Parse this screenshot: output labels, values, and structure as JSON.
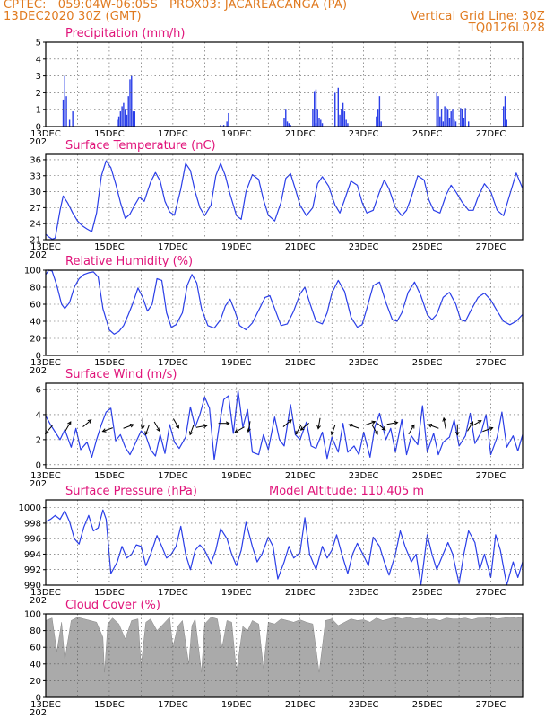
{
  "header": {
    "line1_left": "CPTEC:   059:04W-06:05S   PROX03: JACAREACANGA (PA)",
    "line2_left": "13DEC2020 30Z (GMT)",
    "line2_right": "Vertical Grid Line: 30Z",
    "line3_right": "TQ0126L028"
  },
  "x_labels": [
    "13DEC",
    "15DEC",
    "17DEC",
    "19DEC",
    "21DEC",
    "23DEC",
    "25DEC",
    "27DEC"
  ],
  "x_year_stub": "202",
  "colors": {
    "header": "#e07a1f",
    "title": "#e0147a",
    "line": "#2a3ee8",
    "bar": "#2a3ee8",
    "cloud": "#aaaaaa"
  },
  "chart_data": [
    {
      "id": "precip",
      "type": "bar",
      "title": "Precipitation (mm/h)",
      "x_unit": "days since 13DEC 00Z",
      "ylim": [
        0,
        5
      ],
      "yticks": [
        0,
        1,
        2,
        3,
        4,
        5
      ],
      "x": [
        0.55,
        0.6,
        0.65,
        0.75,
        0.85,
        2.25,
        2.3,
        2.35,
        2.4,
        2.45,
        2.5,
        2.55,
        2.6,
        2.65,
        2.7,
        2.75,
        2.8,
        5.5,
        5.6,
        5.7,
        5.75,
        7.5,
        7.55,
        7.6,
        7.65,
        7.7,
        8.4,
        8.45,
        8.5,
        8.5,
        8.55,
        8.6,
        8.65,
        8.7,
        9.1,
        9.2,
        9.25,
        9.3,
        9.35,
        9.4,
        9.45,
        9.5,
        10.4,
        10.45,
        10.5,
        10.55,
        12.3,
        12.35,
        12.4,
        12.45,
        12.5,
        12.55,
        12.6,
        12.65,
        12.7,
        12.75,
        12.8,
        12.85,
        12.9,
        13.05,
        13.1,
        13.15,
        13.2,
        13.3,
        14.4,
        14.45,
        14.5
      ],
      "values": [
        1.6,
        3.0,
        1.8,
        0.4,
        0.9,
        0.4,
        0.6,
        0.9,
        1.2,
        1.4,
        1.0,
        0.7,
        1.8,
        2.8,
        3.0,
        0.9,
        0.9,
        0.1,
        0.1,
        0.3,
        0.8,
        0.5,
        1.0,
        0.3,
        0.2,
        0.1,
        1.0,
        2.1,
        0.2,
        2.2,
        1.0,
        0.5,
        0.4,
        0.2,
        2.0,
        2.3,
        0.7,
        1.0,
        1.4,
        0.9,
        0.4,
        0.2,
        0.6,
        1.0,
        1.8,
        0.3,
        2.0,
        1.8,
        0.6,
        1.0,
        0.3,
        1.2,
        1.1,
        1.0,
        0.5,
        0.9,
        1.0,
        0.4,
        0.3,
        1.1,
        1.0,
        0.5,
        1.1,
        0.3,
        1.2,
        1.8,
        0.4
      ]
    },
    {
      "id": "temp",
      "type": "line",
      "title": "Surface Temperature (nC)",
      "x_unit": "days since 13DEC 00Z",
      "ylim": [
        21,
        37
      ],
      "yticks": [
        21,
        24,
        27,
        30,
        33,
        36
      ],
      "x": [
        0,
        0.1,
        0.2,
        0.3,
        0.45,
        0.55,
        0.7,
        0.85,
        1.0,
        1.15,
        1.3,
        1.45,
        1.6,
        1.75,
        1.9,
        2.05,
        2.2,
        2.35,
        2.5,
        2.65,
        2.8,
        2.95,
        3.1,
        3.3,
        3.45,
        3.6,
        3.75,
        3.9,
        4.05,
        4.25,
        4.4,
        4.55,
        4.7,
        4.85,
        5.0,
        5.2,
        5.35,
        5.5,
        5.65,
        5.8,
        6.0,
        6.15,
        6.3,
        6.5,
        6.7,
        6.85,
        7.0,
        7.2,
        7.4,
        7.55,
        7.7,
        7.85,
        8.0,
        8.2,
        8.4,
        8.55,
        8.7,
        8.9,
        9.1,
        9.25,
        9.4,
        9.6,
        9.8,
        9.95,
        10.1,
        10.3,
        10.5,
        10.65,
        10.8,
        11.0,
        11.2,
        11.35,
        11.5,
        11.7,
        11.9,
        12.05,
        12.2,
        12.4,
        12.6,
        12.75,
        12.9,
        13.1,
        13.3,
        13.45,
        13.6,
        13.8,
        14.0,
        14.2,
        14.4,
        14.6,
        14.8,
        15.0
      ],
      "values": [
        22.0,
        21.5,
        21.1,
        21.3,
        26.5,
        29.2,
        27.8,
        26.0,
        24.5,
        23.6,
        23.0,
        22.5,
        26.0,
        33.0,
        35.8,
        34.5,
        31.5,
        28.0,
        25.0,
        25.8,
        27.5,
        29.0,
        28.2,
        31.8,
        33.6,
        32.0,
        28.2,
        26.2,
        25.6,
        30.5,
        35.3,
        34.0,
        30.0,
        27.0,
        25.5,
        27.5,
        33.0,
        35.3,
        33.0,
        29.5,
        25.5,
        24.8,
        30.0,
        33.2,
        32.3,
        28.5,
        25.6,
        24.5,
        28.0,
        32.5,
        33.4,
        30.5,
        27.5,
        25.5,
        27.0,
        31.5,
        32.8,
        31.0,
        27.5,
        26.0,
        28.5,
        32.0,
        31.2,
        28.0,
        26.0,
        26.5,
        30.0,
        32.2,
        30.5,
        27.0,
        25.5,
        26.5,
        29.0,
        33.0,
        32.2,
        28.5,
        26.5,
        26.0,
        29.5,
        31.2,
        30.0,
        28.0,
        26.5,
        26.5,
        29.0,
        31.5,
        30.0,
        26.5,
        25.5,
        29.5,
        33.5,
        30.6
      ]
    },
    {
      "id": "rh",
      "type": "line",
      "title": "Relative Humidity (%)",
      "x_unit": "days since 13DEC 00Z",
      "ylim": [
        0,
        100
      ],
      "yticks": [
        0,
        20,
        40,
        60,
        80,
        100
      ],
      "x": [
        0,
        0.1,
        0.2,
        0.35,
        0.5,
        0.6,
        0.75,
        0.9,
        1.05,
        1.2,
        1.35,
        1.5,
        1.65,
        1.8,
        2.0,
        2.15,
        2.3,
        2.45,
        2.6,
        2.75,
        2.9,
        3.05,
        3.2,
        3.35,
        3.5,
        3.65,
        3.8,
        3.95,
        4.1,
        4.3,
        4.45,
        4.6,
        4.75,
        4.9,
        5.1,
        5.3,
        5.5,
        5.65,
        5.8,
        5.95,
        6.1,
        6.3,
        6.5,
        6.7,
        6.9,
        7.05,
        7.2,
        7.4,
        7.6,
        7.8,
        8.0,
        8.15,
        8.3,
        8.5,
        8.7,
        8.85,
        9.0,
        9.2,
        9.4,
        9.6,
        9.8,
        9.95,
        10.1,
        10.3,
        10.5,
        10.7,
        10.9,
        11.05,
        11.2,
        11.4,
        11.6,
        11.8,
        12.0,
        12.15,
        12.3,
        12.5,
        12.7,
        12.9,
        13.05,
        13.2,
        13.4,
        13.6,
        13.8,
        14.0,
        14.2,
        14.4,
        14.6,
        14.8,
        15.0
      ],
      "values": [
        95,
        100,
        99,
        82,
        60,
        55,
        62,
        80,
        90,
        95,
        97,
        98,
        92,
        55,
        30,
        25,
        28,
        35,
        48,
        62,
        79,
        68,
        52,
        60,
        90,
        88,
        50,
        33,
        36,
        50,
        82,
        95,
        85,
        55,
        35,
        32,
        42,
        58,
        66,
        52,
        35,
        30,
        38,
        53,
        68,
        70,
        55,
        35,
        37,
        52,
        72,
        80,
        62,
        40,
        37,
        50,
        73,
        88,
        75,
        45,
        33,
        36,
        55,
        82,
        86,
        62,
        42,
        40,
        50,
        74,
        86,
        70,
        48,
        42,
        48,
        68,
        74,
        60,
        42,
        40,
        55,
        68,
        73,
        65,
        52,
        40,
        36,
        40,
        48
      ]
    },
    {
      "id": "wind",
      "type": "line",
      "title": "Surface Wind (m/s)",
      "x_unit": "days since 13DEC 00Z",
      "ylim": [
        -0.3,
        6.5
      ],
      "yticks": [
        0,
        2,
        4,
        6
      ],
      "x": [
        0,
        0.15,
        0.3,
        0.45,
        0.6,
        0.8,
        0.95,
        1.1,
        1.3,
        1.45,
        1.6,
        1.75,
        1.9,
        2.05,
        2.2,
        2.35,
        2.5,
        2.65,
        2.8,
        3.0,
        3.15,
        3.3,
        3.45,
        3.6,
        3.75,
        3.9,
        4.05,
        4.2,
        4.4,
        4.55,
        4.7,
        4.85,
        5.0,
        5.15,
        5.3,
        5.45,
        5.6,
        5.75,
        5.9,
        6.05,
        6.2,
        6.35,
        6.5,
        6.7,
        6.85,
        7.0,
        7.2,
        7.35,
        7.5,
        7.7,
        7.85,
        8.0,
        8.2,
        8.35,
        8.5,
        8.7,
        8.85,
        9.0,
        9.2,
        9.35,
        9.5,
        9.7,
        9.85,
        10.0,
        10.2,
        10.35,
        10.5,
        10.7,
        10.85,
        11.0,
        11.2,
        11.35,
        11.5,
        11.7,
        11.85,
        12.0,
        12.2,
        12.35,
        12.5,
        12.7,
        12.85,
        13.0,
        13.2,
        13.35,
        13.5,
        13.7,
        13.85,
        14.0,
        14.2,
        14.35,
        14.5,
        14.7,
        14.85,
        15.0
      ],
      "values": [
        3.9,
        3.2,
        2.6,
        2.0,
        2.8,
        1.4,
        2.9,
        1.2,
        1.8,
        0.6,
        2.0,
        3.2,
        4.2,
        4.5,
        1.9,
        2.4,
        1.4,
        0.8,
        1.6,
        2.7,
        2.3,
        1.2,
        0.7,
        2.4,
        0.9,
        3.2,
        1.8,
        1.3,
        2.2,
        4.6,
        3.0,
        4.0,
        5.4,
        4.5,
        0.4,
        3.0,
        5.2,
        5.5,
        2.5,
        5.9,
        3.0,
        4.4,
        1.0,
        0.8,
        2.4,
        1.2,
        3.8,
        2.0,
        1.5,
        4.8,
        2.4,
        2.0,
        3.4,
        1.5,
        1.3,
        2.6,
        0.5,
        2.2,
        1.0,
        3.3,
        1.0,
        1.5,
        0.8,
        2.6,
        0.6,
        3.0,
        4.1,
        2.0,
        2.9,
        1.0,
        3.6,
        0.8,
        2.3,
        1.6,
        4.7,
        1.0,
        2.5,
        0.8,
        1.8,
        2.2,
        3.6,
        1.5,
        2.3,
        4.1,
        1.7,
        2.6,
        4.0,
        0.8,
        2.2,
        4.2,
        1.4,
        2.3,
        1.1,
        2.4
      ],
      "arrow_x": [
        0.1,
        0.7,
        1.3,
        1.95,
        2.6,
        3.05,
        3.2,
        3.5,
        4.1,
        4.6,
        4.9,
        5.6,
        6.1,
        6.4,
        7.6,
        7.95,
        8.15,
        8.6,
        9.05,
        9.7,
        10.2,
        10.35,
        10.55,
        10.9,
        11.5,
        12.2,
        12.55,
        12.95,
        13.35,
        13.55,
        13.9
      ],
      "arrow_dir_deg": [
        230,
        60,
        40,
        200,
        20,
        270,
        250,
        300,
        300,
        250,
        10,
        0,
        210,
        260,
        40,
        240,
        220,
        260,
        250,
        160,
        20,
        300,
        320,
        10,
        60,
        160,
        100,
        270,
        60,
        30,
        20
      ]
    },
    {
      "id": "press",
      "type": "line",
      "title": "Surface Pressure (hPa)",
      "x_unit": "days since 13DEC 00Z",
      "ylim": [
        990,
        1001
      ],
      "yticks": [
        990,
        992,
        994,
        996,
        998,
        1000
      ],
      "x": [
        0,
        0.15,
        0.3,
        0.45,
        0.6,
        0.75,
        0.9,
        1.05,
        1.2,
        1.35,
        1.5,
        1.65,
        1.8,
        1.9,
        2.05,
        2.25,
        2.4,
        2.55,
        2.7,
        2.85,
        3.0,
        3.15,
        3.3,
        3.5,
        3.65,
        3.8,
        3.95,
        4.1,
        4.25,
        4.4,
        4.55,
        4.7,
        4.85,
        5.0,
        5.2,
        5.35,
        5.5,
        5.7,
        5.85,
        6.0,
        6.15,
        6.3,
        6.5,
        6.65,
        6.8,
        7.0,
        7.15,
        7.3,
        7.5,
        7.65,
        7.8,
        8.0,
        8.15,
        8.3,
        8.5,
        8.7,
        8.85,
        9.0,
        9.15,
        9.3,
        9.5,
        9.65,
        9.8,
        10.0,
        10.15,
        10.3,
        10.5,
        10.65,
        10.8,
        11.0,
        11.15,
        11.3,
        11.5,
        11.65,
        11.8,
        12.0,
        12.15,
        12.3,
        12.5,
        12.65,
        12.8,
        13.0,
        13.15,
        13.3,
        13.5,
        13.65,
        13.8,
        14.0,
        14.15,
        14.3,
        14.5,
        14.7,
        14.85,
        15.0
      ],
      "values": [
        998.2,
        998.5,
        999.0,
        998.5,
        999.6,
        998.2,
        996.0,
        995.3,
        997.5,
        999.0,
        997.0,
        997.4,
        999.7,
        998.5,
        991.5,
        993.0,
        995.0,
        993.5,
        994.0,
        995.2,
        995.0,
        992.5,
        994.0,
        996.4,
        995.0,
        993.5,
        994.0,
        995.0,
        997.6,
        994.0,
        992.0,
        994.5,
        995.2,
        994.5,
        992.8,
        994.5,
        997.3,
        996.0,
        994.0,
        992.5,
        994.5,
        998.1,
        995.0,
        993.0,
        994.0,
        996.2,
        995.0,
        990.8,
        993.0,
        995.0,
        993.5,
        994.2,
        998.7,
        994.0,
        992.0,
        995.0,
        993.5,
        994.5,
        996.5,
        994.2,
        991.5,
        994.0,
        995.4,
        993.8,
        992.5,
        996.2,
        995.0,
        993.0,
        991.3,
        994.0,
        997.0,
        995.0,
        993.0,
        994.0,
        990.0,
        996.5,
        994.0,
        992.0,
        994.0,
        995.5,
        994.0,
        990.2,
        994.0,
        997.0,
        995.5,
        992.0,
        994.0,
        991.0,
        996.5,
        994.5,
        990.0,
        993.0,
        991.0,
        993.0
      ]
    },
    {
      "id": "cloud",
      "type": "area",
      "title": "Cloud Cover (%)",
      "x_unit": "days since 13DEC 00Z",
      "ylim": [
        0,
        100
      ],
      "yticks": [
        0,
        20,
        40,
        60,
        80,
        100
      ],
      "x": [
        0,
        0.2,
        0.35,
        0.5,
        0.6,
        0.8,
        1.0,
        1.2,
        1.4,
        1.6,
        1.8,
        1.85,
        1.95,
        2.1,
        2.3,
        2.5,
        2.7,
        2.9,
        3.0,
        3.15,
        3.3,
        3.5,
        3.7,
        3.9,
        4.0,
        4.15,
        4.3,
        4.5,
        4.6,
        4.7,
        4.9,
        5.0,
        5.2,
        5.4,
        5.55,
        5.7,
        5.85,
        6.0,
        6.2,
        6.35,
        6.5,
        6.7,
        6.85,
        7.0,
        7.2,
        7.4,
        7.6,
        7.8,
        8.0,
        8.2,
        8.4,
        8.6,
        8.8,
        9.0,
        9.2,
        9.4,
        9.6,
        9.8,
        10.0,
        10.2,
        10.4,
        10.6,
        10.8,
        11.0,
        11.2,
        11.4,
        11.6,
        11.8,
        12.0,
        12.2,
        12.4,
        12.6,
        12.8,
        13.0,
        13.2,
        13.4,
        13.6,
        13.8,
        14.0,
        14.2,
        14.4,
        14.6,
        14.8,
        15.0
      ],
      "values": [
        92,
        95,
        55,
        90,
        45,
        92,
        96,
        94,
        92,
        90,
        72,
        30,
        88,
        95,
        88,
        70,
        92,
        94,
        38,
        90,
        94,
        80,
        88,
        96,
        60,
        85,
        92,
        40,
        86,
        94,
        30,
        88,
        96,
        94,
        60,
        92,
        90,
        30,
        85,
        80,
        92,
        88,
        35,
        90,
        88,
        94,
        92,
        90,
        93,
        90,
        88,
        30,
        92,
        94,
        86,
        90,
        94,
        92,
        93,
        90,
        95,
        92,
        94,
        96,
        94,
        96,
        94,
        95,
        93,
        94,
        92,
        95,
        94,
        94,
        95,
        93,
        95,
        95,
        96,
        94,
        95,
        96,
        95,
        96
      ]
    }
  ],
  "panel_extra": {
    "model_altitude": "Model Altitude: 110.405  m"
  }
}
